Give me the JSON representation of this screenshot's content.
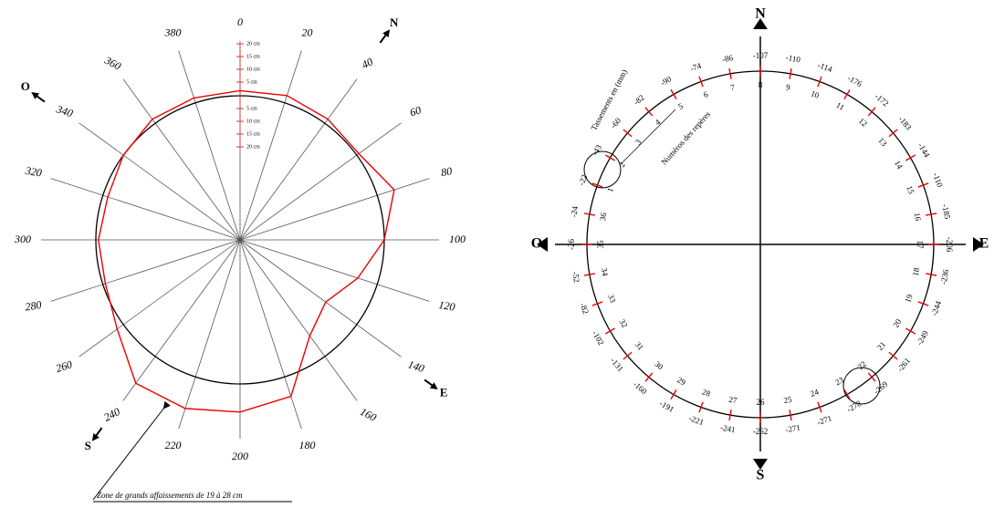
{
  "left": {
    "angles": [
      0,
      20,
      40,
      60,
      80,
      100,
      120,
      140,
      160,
      180,
      200,
      220,
      240,
      260,
      280,
      300,
      320,
      340,
      360,
      380
    ],
    "profile_cm": [
      2,
      3,
      2,
      1,
      7,
      0,
      -8,
      -15,
      -10,
      8,
      11,
      13,
      13,
      3,
      -1,
      -1,
      -2,
      0,
      2,
      2
    ],
    "scale_up": [
      "20 cm",
      "15 cm",
      "10 cm",
      "5 cm"
    ],
    "scale_down": [
      "5 cm",
      "10 cm",
      "15 cm",
      "20 cm"
    ],
    "compass": {
      "N": "N",
      "E": "E",
      "S": "S",
      "O": "O"
    },
    "annotation": "Zone de grands affaissements de 19 à 28 cm"
  },
  "right": {
    "compass": {
      "N": "N",
      "E": "E",
      "S": "S",
      "O": "O"
    },
    "caption_values": "Tassements en (mm)",
    "caption_numbers": "Numéros des repères",
    "points": [
      {
        "number": 1,
        "value": -22
      },
      {
        "number": 2,
        "value": -43
      },
      {
        "number": 3,
        "value": -60
      },
      {
        "number": 4,
        "value": -82
      },
      {
        "number": 5,
        "value": -90
      },
      {
        "number": 6,
        "value": -74
      },
      {
        "number": 7,
        "value": -86
      },
      {
        "number": 8,
        "value": -107
      },
      {
        "number": 9,
        "value": -110
      },
      {
        "number": 10,
        "value": -114
      },
      {
        "number": 11,
        "value": -176
      },
      {
        "number": 12,
        "value": -172
      },
      {
        "number": 13,
        "value": -183
      },
      {
        "number": 14,
        "value": -144
      },
      {
        "number": 15,
        "value": -110
      },
      {
        "number": 16,
        "value": -185
      },
      {
        "number": 17,
        "value": -206
      },
      {
        "number": 18,
        "value": -236
      },
      {
        "number": 19,
        "value": -244
      },
      {
        "number": 20,
        "value": -249
      },
      {
        "number": 21,
        "value": -261
      },
      {
        "number": 22,
        "value": -269
      },
      {
        "number": 23,
        "value": -278
      },
      {
        "number": 24,
        "value": -271
      },
      {
        "number": 25,
        "value": -271
      },
      {
        "number": 26,
        "value": -262
      },
      {
        "number": 27,
        "value": -241
      },
      {
        "number": 28,
        "value": -221
      },
      {
        "number": 29,
        "value": -191
      },
      {
        "number": 30,
        "value": -160
      },
      {
        "number": 31,
        "value": -131
      },
      {
        "number": 32,
        "value": -102
      },
      {
        "number": 33,
        "value": -82
      },
      {
        "number": 34,
        "value": -52
      },
      {
        "number": 35,
        "value": -26
      },
      {
        "number": 36,
        "value": -24
      }
    ]
  }
}
